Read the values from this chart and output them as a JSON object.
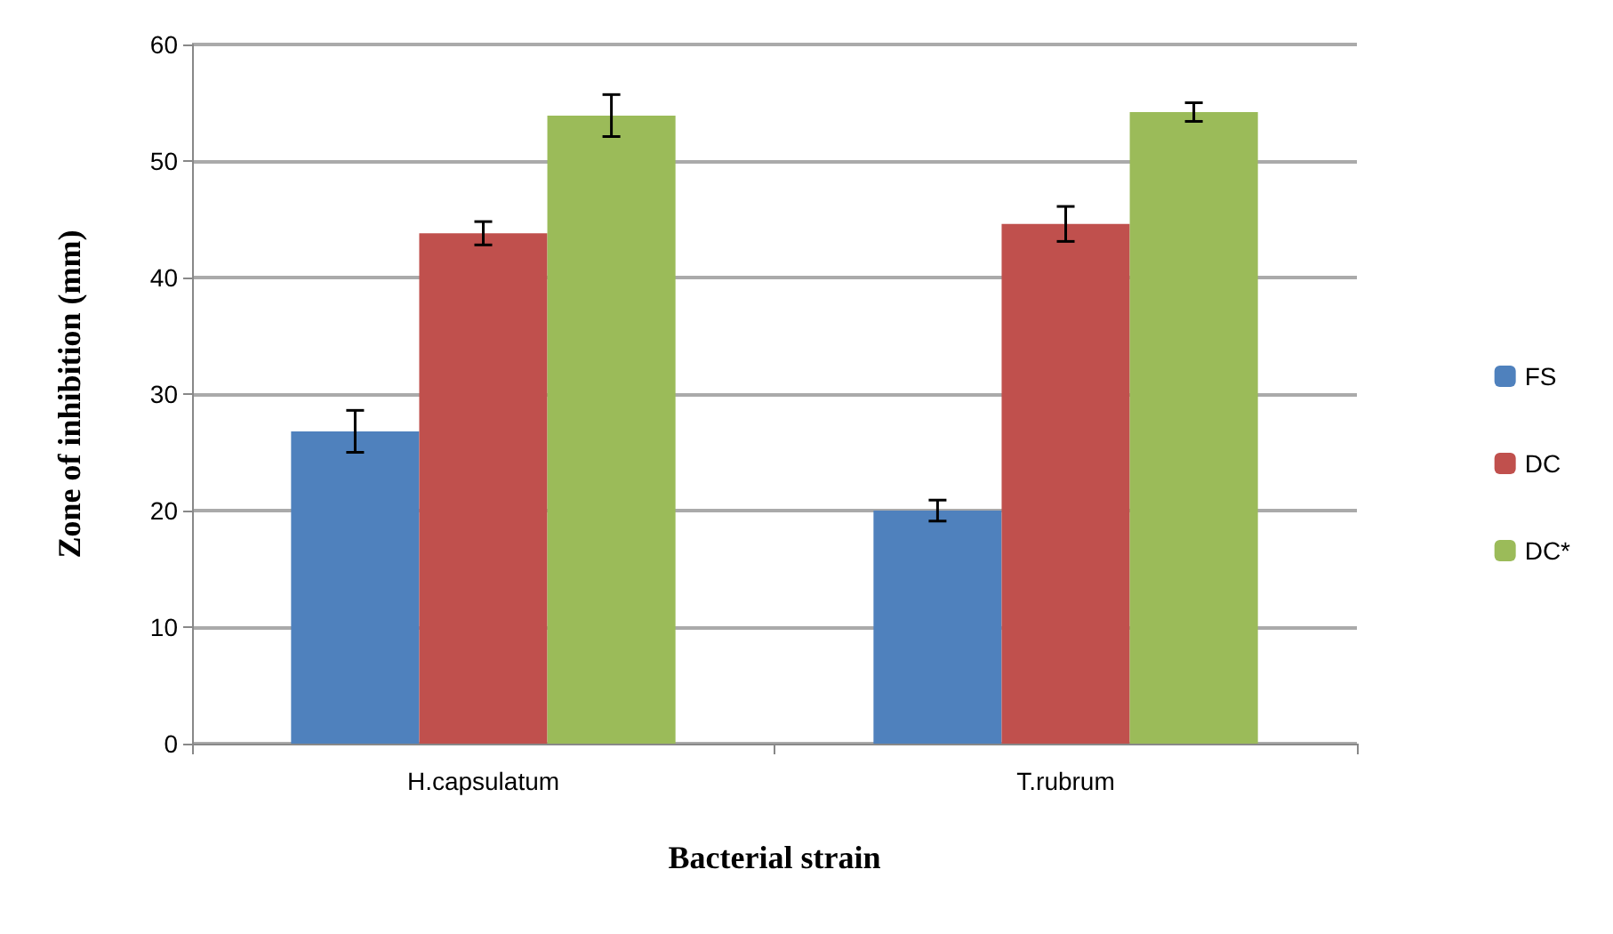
{
  "chart_data": {
    "type": "bar",
    "xlabel": "Bacterial strain",
    "ylabel": "Zone of inhibition (mm)",
    "categories": [
      "H.capsulatum",
      "T.rubrum"
    ],
    "series": [
      {
        "name": "FS",
        "color": "#4f81bd",
        "values": [
          26.8,
          20.0
        ],
        "errors": [
          1.8,
          0.9
        ]
      },
      {
        "name": "DC",
        "color": "#c0504d",
        "values": [
          43.8,
          44.6
        ],
        "errors": [
          1.0,
          1.5
        ]
      },
      {
        "name": "DC*",
        "color": "#9bbb59",
        "values": [
          53.9,
          54.2
        ],
        "errors": [
          1.8,
          0.8
        ]
      }
    ],
    "ylim": [
      0,
      60
    ],
    "yticks": [
      0,
      10,
      20,
      30,
      40,
      50,
      60
    ],
    "grid": "y",
    "legend": "right"
  }
}
